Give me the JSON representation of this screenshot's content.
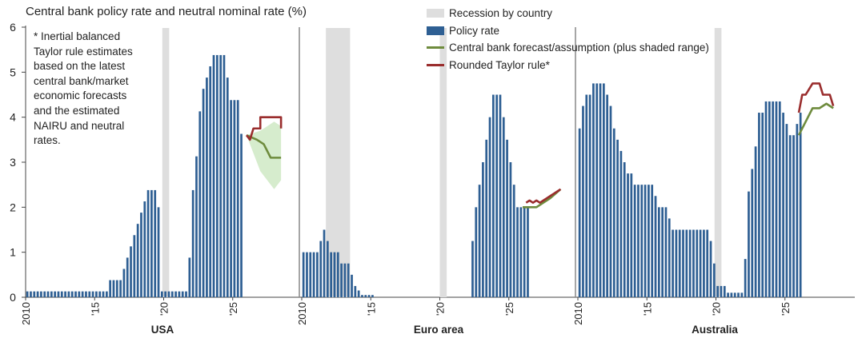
{
  "chart_data": {
    "type": "bar",
    "title": "Central bank policy rate and neutral nominal rate (%)",
    "note": "* Inertial balanced\nTaylor rule estimates\nbased on the latest\ncentral bank/market\neconomic forecasts\nand the estimated\nNAIRU and neutral\nrates.",
    "ylim": [
      0,
      6
    ],
    "yticks": [
      "0",
      "1",
      "2",
      "3",
      "4",
      "5",
      "6"
    ],
    "xticks": [
      "2010",
      "'15",
      "'20",
      "'25"
    ],
    "legend": [
      {
        "label": "Recession by country",
        "kind": "recession",
        "color": "#dedede"
      },
      {
        "label": "Policy rate",
        "kind": "bar",
        "color": "#2e5f93"
      },
      {
        "label": "Central bank forecast/assumption (plus shaded range)",
        "kind": "line",
        "color": "#6e8b3d"
      },
      {
        "label": "Rounded Taylor rule*",
        "kind": "line",
        "color": "#9a2d2d"
      }
    ],
    "panels": [
      {
        "name": "USA",
        "start": 2010,
        "recessions": [
          [
            2019.9,
            2020.4
          ]
        ],
        "policy_rate": [
          0.13,
          0.13,
          0.13,
          0.13,
          0.13,
          0.13,
          0.13,
          0.13,
          0.13,
          0.13,
          0.13,
          0.13,
          0.13,
          0.13,
          0.13,
          0.13,
          0.13,
          0.13,
          0.13,
          0.13,
          0.13,
          0.13,
          0.13,
          0.13,
          0.38,
          0.38,
          0.38,
          0.38,
          0.63,
          0.88,
          1.13,
          1.38,
          1.63,
          1.88,
          2.13,
          2.38,
          2.38,
          2.38,
          2.0,
          0.13,
          0.13,
          0.13,
          0.13,
          0.13,
          0.13,
          0.13,
          0.13,
          0.88,
          2.38,
          3.13,
          4.13,
          4.63,
          4.88,
          5.13,
          5.38,
          5.38,
          5.38,
          5.38,
          4.88,
          4.38,
          4.38,
          4.38,
          3.63
        ],
        "forecast": {
          "x": [
            2026.0,
            2026.75,
            2027.25,
            2027.75,
            2028.5
          ],
          "y": [
            3.6,
            3.5,
            3.4,
            3.1,
            3.1
          ]
        },
        "range_upper": {
          "x": [
            2026.0,
            2027.0,
            2028.0,
            2028.5
          ],
          "y": [
            3.6,
            3.7,
            3.9,
            3.8
          ]
        },
        "range_lower": {
          "x": [
            2026.0,
            2027.0,
            2028.0,
            2028.5
          ],
          "y": [
            3.6,
            2.8,
            2.4,
            2.6
          ]
        },
        "taylor": {
          "x": [
            2026.0,
            2026.25,
            2026.5,
            2026.75,
            2027.0,
            2027.0,
            2028.25,
            2028.5,
            2028.5
          ],
          "y": [
            3.6,
            3.5,
            3.75,
            3.75,
            3.75,
            4.0,
            4.0,
            4.0,
            3.75
          ]
        }
      },
      {
        "name": "Euro area",
        "start": 2010,
        "recessions": [
          [
            2011.75,
            2013.5
          ],
          [
            2020.0,
            2020.5
          ]
        ],
        "policy_rate": [
          1.0,
          1.0,
          1.0,
          1.0,
          1.0,
          1.25,
          1.5,
          1.25,
          1.0,
          1.0,
          1.0,
          0.75,
          0.75,
          0.75,
          0.5,
          0.25,
          0.15,
          0.05,
          0.05,
          0.05,
          0.05,
          0,
          0,
          0,
          0,
          0,
          0,
          0,
          0,
          0,
          0,
          0,
          0,
          0,
          0,
          0,
          0,
          0,
          0,
          0,
          0,
          0,
          0,
          0,
          0,
          0,
          0,
          0,
          0,
          1.25,
          2.0,
          2.5,
          3.0,
          3.5,
          4.0,
          4.5,
          4.5,
          4.5,
          4.0,
          3.5,
          3.0,
          2.5,
          2.0,
          2.0,
          2.0,
          2.0
        ],
        "forecast": {
          "x": [
            2026.0,
            2027.0,
            2027.5,
            2028.0,
            2028.75
          ],
          "y": [
            2.0,
            2.0,
            2.1,
            2.2,
            2.4
          ]
        },
        "taylor": {
          "x": [
            2026.25,
            2026.5,
            2026.75,
            2027.0,
            2027.25,
            2027.5,
            2027.75,
            2028.0,
            2028.25,
            2028.5,
            2028.75
          ],
          "y": [
            2.1,
            2.15,
            2.1,
            2.15,
            2.1,
            2.15,
            2.2,
            2.25,
            2.3,
            2.35,
            2.4
          ]
        }
      },
      {
        "name": "Australia",
        "start": 2010,
        "recessions": [
          [
            2019.9,
            2020.4
          ]
        ],
        "policy_rate": [
          3.75,
          4.25,
          4.5,
          4.5,
          4.75,
          4.75,
          4.75,
          4.75,
          4.5,
          4.25,
          3.75,
          3.5,
          3.25,
          3.0,
          2.75,
          2.75,
          2.5,
          2.5,
          2.5,
          2.5,
          2.5,
          2.5,
          2.25,
          2.0,
          2.0,
          2.0,
          1.75,
          1.5,
          1.5,
          1.5,
          1.5,
          1.5,
          1.5,
          1.5,
          1.5,
          1.5,
          1.5,
          1.5,
          1.25,
          0.75,
          0.25,
          0.25,
          0.25,
          0.1,
          0.1,
          0.1,
          0.1,
          0.1,
          0.85,
          2.35,
          2.85,
          3.35,
          4.1,
          4.1,
          4.35,
          4.35,
          4.35,
          4.35,
          4.35,
          4.1,
          3.85,
          3.6,
          3.6,
          3.85,
          4.1
        ],
        "forecast": {
          "x": [
            2026.0,
            2027.0,
            2027.5,
            2028.0,
            2028.5
          ],
          "y": [
            3.6,
            4.2,
            4.2,
            4.3,
            4.2
          ]
        },
        "taylor": {
          "x": [
            2026.0,
            2026.25,
            2026.5,
            2027.0,
            2027.5,
            2027.75,
            2028.25,
            2028.5
          ],
          "y": [
            4.1,
            4.5,
            4.5,
            4.75,
            4.75,
            4.5,
            4.5,
            4.25
          ]
        }
      }
    ]
  }
}
